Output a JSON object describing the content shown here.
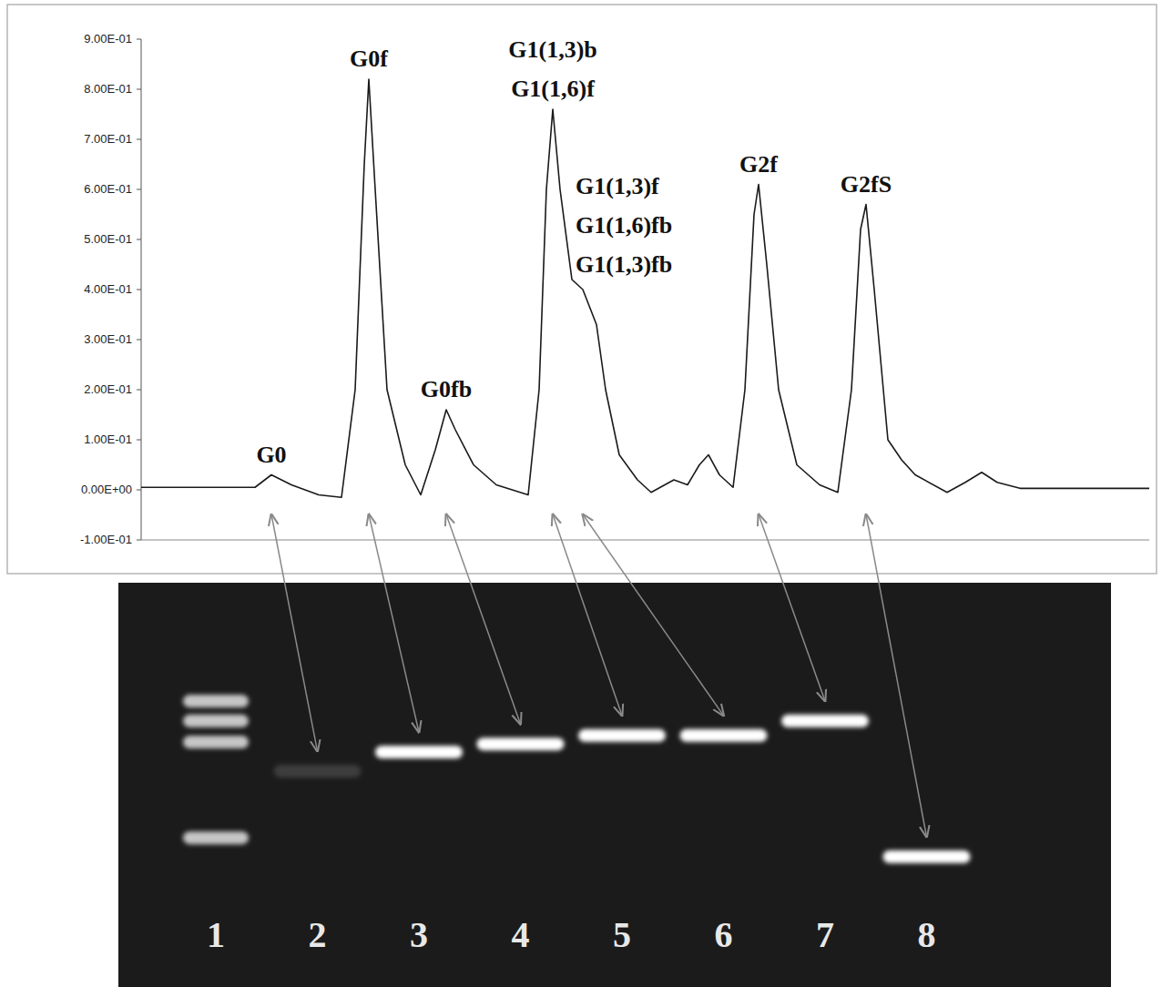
{
  "chart_data": {
    "type": "line",
    "color": "#1a1a1a",
    "grid": false,
    "tick_labels": "y",
    "xlim": [
      0,
      1107
    ],
    "ylim": [
      -0.1,
      0.9
    ],
    "yticks": [
      {
        "value": 0.9,
        "label": "9.00E-01"
      },
      {
        "value": 0.8,
        "label": "8.00E-01"
      },
      {
        "value": 0.7,
        "label": "7.00E-01"
      },
      {
        "value": 0.6,
        "label": "6.00E-01"
      },
      {
        "value": 0.5,
        "label": "5.00E-01"
      },
      {
        "value": 0.4,
        "label": "4.00E-01"
      },
      {
        "value": 0.3,
        "label": "3.00E-01"
      },
      {
        "value": 0.2,
        "label": "2.00E-01"
      },
      {
        "value": 0.1,
        "label": "1.00E-01"
      },
      {
        "value": 0,
        "label": "0.00E+00"
      },
      {
        "value": -0.1,
        "label": "-1.00E-01"
      }
    ],
    "x": [
      0,
      125,
      143,
      165,
      195,
      220,
      235,
      245,
      250,
      257,
      270,
      290,
      307,
      323,
      335,
      345,
      365,
      390,
      425,
      437,
      445,
      452,
      460,
      473,
      485,
      500,
      510,
      525,
      545,
      560,
      585,
      600,
      613,
      623,
      635,
      650,
      663,
      673,
      678,
      687,
      700,
      720,
      745,
      765,
      780,
      790,
      796,
      805,
      820,
      835,
      850,
      885,
      905,
      923,
      940,
      965,
      1107
    ],
    "values": [
      0.005,
      0.005,
      0.03,
      0.01,
      -0.01,
      -0.015,
      0.2,
      0.65,
      0.82,
      0.6,
      0.2,
      0.05,
      -0.01,
      0.08,
      0.16,
      0.12,
      0.05,
      0.01,
      -0.01,
      0.2,
      0.6,
      0.76,
      0.6,
      0.42,
      0.4,
      0.33,
      0.2,
      0.07,
      0.02,
      -0.005,
      0.02,
      0.01,
      0.05,
      0.07,
      0.03,
      0.005,
      0.2,
      0.55,
      0.61,
      0.45,
      0.2,
      0.05,
      0.01,
      -0.005,
      0.2,
      0.52,
      0.57,
      0.4,
      0.1,
      0.06,
      0.03,
      -0.005,
      0.015,
      0.035,
      0.015,
      0.003,
      0.003
    ],
    "annotations": [
      {
        "text": [
          "G0"
        ],
        "x": 143,
        "y": 0.03,
        "lane": 1
      },
      {
        "text": [
          "G0f"
        ],
        "x": 250,
        "y": 0.82,
        "lane": 2
      },
      {
        "text": [
          "G0fb"
        ],
        "x": 335,
        "y": 0.16,
        "lane": 3
      },
      {
        "text": [
          "G1(1,3)b",
          "G1(1,6)f"
        ],
        "x": 452,
        "y": 0.76,
        "lane": 4
      },
      {
        "text": [
          "G1(1,3)f",
          "G1(1,6)fb",
          "G1(1,3)fb"
        ],
        "x": 485,
        "y": 0.41,
        "lane": 5
      },
      {
        "text": [
          "G2f"
        ],
        "x": 678,
        "y": 0.61,
        "lane": 6
      },
      {
        "text": [
          "G2fS"
        ],
        "x": 796,
        "y": 0.57,
        "lane": 7
      }
    ]
  },
  "gel": {
    "lanes": [
      {
        "label": "1",
        "bands": [
          {
            "migration": 29.3,
            "intensity": 0.75
          },
          {
            "migration": 34.2,
            "intensity": 0.75
          },
          {
            "migration": 39.4,
            "intensity": 0.75
          },
          {
            "migration": 63.1,
            "intensity": 0.75
          }
        ]
      },
      {
        "label": "2",
        "bands": [
          {
            "migration": 46.6,
            "intensity": 0.15
          }
        ]
      },
      {
        "label": "3",
        "bands": [
          {
            "migration": 41.9,
            "intensity": 1
          }
        ]
      },
      {
        "label": "4",
        "bands": [
          {
            "migration": 39.9,
            "intensity": 1
          }
        ]
      },
      {
        "label": "5",
        "bands": [
          {
            "migration": 37.8,
            "intensity": 1
          }
        ]
      },
      {
        "label": "6",
        "bands": [
          {
            "migration": 37.8,
            "intensity": 1
          }
        ]
      },
      {
        "label": "7",
        "bands": [
          {
            "migration": 34.2,
            "intensity": 1
          }
        ]
      },
      {
        "label": "8",
        "bands": [
          {
            "migration": 67.8,
            "intensity": 1
          }
        ]
      }
    ]
  }
}
